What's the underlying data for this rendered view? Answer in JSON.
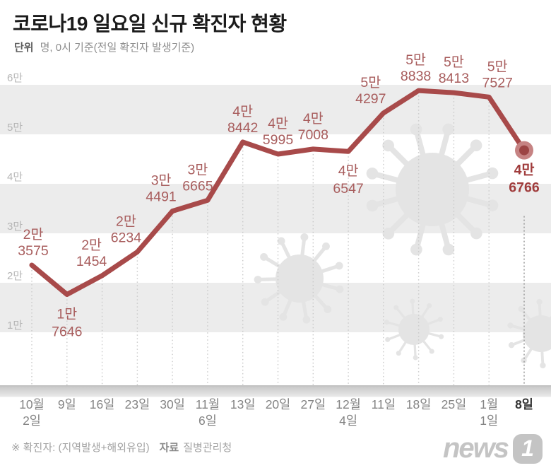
{
  "header": {
    "title": "코로나19 일요일 신규 확진자 현황",
    "unit_label": "단위",
    "unit_text": "명, 0시 기준(전일 확진자 발생기준)"
  },
  "footer": {
    "note": "※ 확진자: (지역발생+해외유입)",
    "source_label": "자료",
    "source": "질병관리청",
    "logo_word": "news",
    "logo_badge": "1"
  },
  "chart_data": {
    "type": "line",
    "title": "코로나19 일요일 신규 확진자 현황",
    "unit": "명, 0시 기준(전일 확진자 발생기준)",
    "categories": [
      [
        "10월",
        "2일"
      ],
      [
        "9일"
      ],
      [
        "16일"
      ],
      [
        "23일"
      ],
      [
        "30일"
      ],
      [
        "11월",
        "6일"
      ],
      [
        "13일"
      ],
      [
        "20일"
      ],
      [
        "27일"
      ],
      [
        "12월",
        "4일"
      ],
      [
        "11일"
      ],
      [
        "18일"
      ],
      [
        "25일"
      ],
      [
        "1월",
        "1일"
      ],
      [
        "8일"
      ]
    ],
    "values": [
      23575,
      17646,
      21454,
      26234,
      34491,
      36665,
      48442,
      45995,
      47008,
      46547,
      54297,
      58838,
      58413,
      57527,
      46766
    ],
    "point_labels": [
      [
        "2만",
        "3575"
      ],
      [
        "1만",
        "7646"
      ],
      [
        "2만",
        "1454"
      ],
      [
        "2만",
        "6234"
      ],
      [
        "3만",
        "4491"
      ],
      [
        "3만",
        "6665"
      ],
      [
        "4만",
        "8442"
      ],
      [
        "4만",
        "5995"
      ],
      [
        "4만",
        "7008"
      ],
      [
        "4만",
        "6547"
      ],
      [
        "5만",
        "4297"
      ],
      [
        "5만",
        "8838"
      ],
      [
        "5만",
        "8413"
      ],
      [
        "5만",
        "7527"
      ],
      [
        "4만",
        "6766"
      ]
    ],
    "label_side": [
      "above",
      "below",
      "above",
      "above",
      "above",
      "above",
      "above",
      "above",
      "above",
      "below",
      "above",
      "above",
      "above",
      "above",
      "below"
    ],
    "label_dx": [
      2,
      0,
      -15,
      -16,
      -16,
      -14,
      0,
      0,
      0,
      0,
      -18,
      -4,
      0,
      12,
      0
    ],
    "y_axis": {
      "ticks": [
        {
          "label": "6만",
          "value": 60000
        },
        {
          "label": "5만",
          "value": 50000
        },
        {
          "label": "4만",
          "value": 40000
        },
        {
          "label": "3만",
          "value": 30000
        },
        {
          "label": "2만",
          "value": 20000
        },
        {
          "label": "1만",
          "value": 10000
        }
      ],
      "min": 0,
      "max": 60000
    },
    "bands": [
      [
        60000,
        50000
      ],
      [
        40000,
        30000
      ],
      [
        20000,
        10000
      ]
    ],
    "grid": "horizontal-bands",
    "legend": "none",
    "colors": {
      "line": "#a84a4a",
      "point_label": "#a85d5d",
      "final_label": "#a03c3c",
      "marker_outer": "#c68383",
      "marker_inner": "#9c4444",
      "band": "#ececec",
      "axis_strip_dark": "#c8c8c8",
      "axis_strip_light": "#ebebeb",
      "dotted_line": "#c9c9c9",
      "dotted_line_final": "#9e9e9e",
      "x_label": "#848484",
      "x_label_final": "#333333",
      "y_label": "#b5b5b5",
      "watermark": "#e4e4e4"
    }
  }
}
